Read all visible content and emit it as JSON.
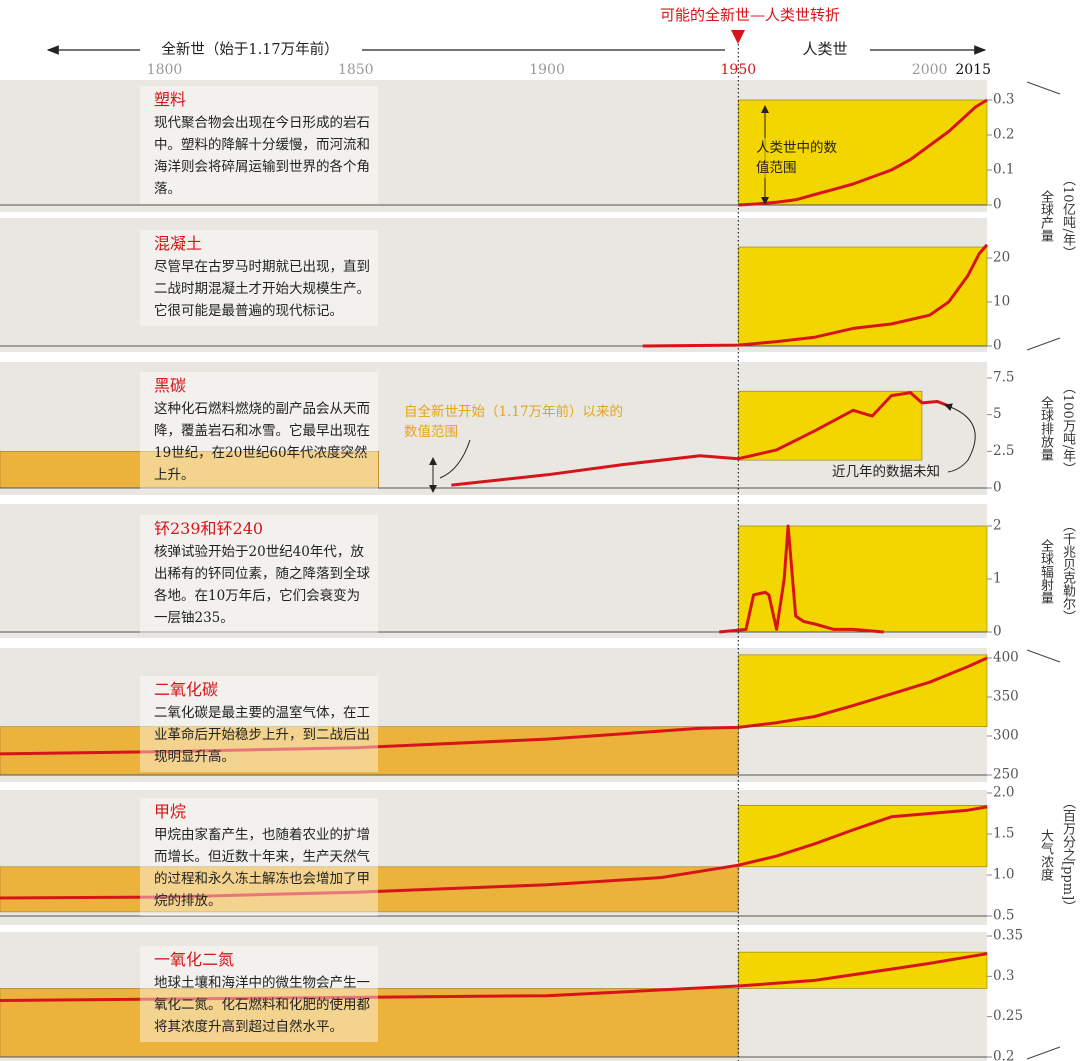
{
  "header": {
    "transition": "可能的全新世—人类世转折",
    "holocene": "全新世（始于1.17万年前）",
    "anthropocene": "人类世"
  },
  "timeline": {
    "xlim": [
      1757,
      2015
    ],
    "xticks": [
      1800,
      1850,
      1900,
      1950,
      2000,
      2015
    ],
    "transition_year": 1950
  },
  "axis_groups": [
    {
      "title": "全球产量",
      "unit": "（10亿吨/年）"
    },
    {
      "title": "全球排放量",
      "unit": "（100万吨/年）"
    },
    {
      "title": "全球辐射量",
      "unit": "（千兆贝克勒尔）"
    },
    {
      "title": "大气浓度",
      "unit": "（百万分之[ppm]）"
    }
  ],
  "annotations": {
    "anthropocene_range": "人类世中的数值范围",
    "holocene_range": "自全新世开始（1.17万年前）以来的数值范围",
    "recent_unknown": "近几年的数据未知"
  },
  "chart_data": [
    {
      "type": "line",
      "title": "塑料",
      "text": "现代聚合物会出现在今日形成的岩石中。塑料的降解十分缓慢，而河流和海洋则会将碎屑运输到世界的各个角落。",
      "color": "#d7141a",
      "x": [
        1950,
        1955,
        1960,
        1965,
        1970,
        1975,
        1980,
        1985,
        1990,
        1995,
        2000,
        2005,
        2010,
        2012,
        2015
      ],
      "values": [
        0,
        0.003,
        0.008,
        0.015,
        0.03,
        0.045,
        0.06,
        0.08,
        0.1,
        0.13,
        0.17,
        0.21,
        0.26,
        0.28,
        0.3
      ],
      "ylim": [
        0,
        0.3
      ],
      "yticks": [
        0,
        0.1,
        0.2,
        0.3
      ],
      "anthropocene_range": [
        0,
        0.3
      ]
    },
    {
      "type": "line",
      "title": "混凝土",
      "text": "尽管早在古罗马时期就已出现，直到二战时期混凝土才开始大规模生产。它很可能是最普遍的现代标记。",
      "color": "#d7141a",
      "x": [
        1925,
        1950,
        1960,
        1970,
        1980,
        1990,
        2000,
        2005,
        2010,
        2013,
        2015
      ],
      "values": [
        0,
        0.2,
        1,
        2,
        4,
        5,
        7,
        10,
        16,
        21,
        23
      ],
      "ylim": [
        0,
        25
      ],
      "yticks": [
        0,
        10,
        20
      ],
      "anthropocene_range": [
        0,
        22.5
      ]
    },
    {
      "type": "line",
      "title": "黑碳",
      "text": "这种化石燃料燃烧的副产品会从天而降，覆盖岩石和冰雪。它最早出现在19世纪，在20世纪60年代浓度突然上升。",
      "color": "#d7141a",
      "x": [
        1875,
        1900,
        1920,
        1940,
        1950,
        1960,
        1970,
        1980,
        1985,
        1990,
        1995,
        1998,
        2002,
        2005
      ],
      "values": [
        0.2,
        0.9,
        1.6,
        2.2,
        2.0,
        2.6,
        3.9,
        5.3,
        4.9,
        6.3,
        6.5,
        5.8,
        5.9,
        5.6
      ],
      "ylim": [
        0,
        7.5
      ],
      "yticks": [
        0,
        2.5,
        5,
        7.5
      ],
      "holocene_range": [
        0,
        2.5
      ],
      "holocene_x": [
        1757,
        1856
      ],
      "anthropocene_range": [
        1.9,
        6.6
      ],
      "anthropocene_x": [
        1950,
        1998
      ]
    },
    {
      "type": "line",
      "title": "钚239和钚240",
      "text": "核弹试验开始于20世纪40年代，放出稀有的钚同位素，随之降落到全球各地。在10万年后，它们会衰变为一层铀235。",
      "color": "#d7141a",
      "x": [
        1945,
        1952,
        1954,
        1957,
        1958,
        1960,
        1962,
        1963,
        1965,
        1967,
        1970,
        1975,
        1980,
        1988
      ],
      "values": [
        0,
        0.05,
        0.7,
        0.75,
        0.7,
        0.05,
        1.0,
        2.0,
        0.3,
        0.2,
        0.15,
        0.05,
        0.05,
        0
      ],
      "ylim": [
        0,
        2
      ],
      "yticks": [
        0,
        1,
        2
      ],
      "anthropocene_range": [
        0,
        2
      ]
    },
    {
      "type": "line",
      "title": "二氧化碳",
      "text": "二氧化碳是最主要的温室气体，在工业革命后开始稳步上升，到二战后出现明显升高。",
      "color": "#d7141a",
      "x": [
        1757,
        1800,
        1850,
        1900,
        1920,
        1940,
        1950,
        1960,
        1970,
        1980,
        1990,
        2000,
        2010,
        2015
      ],
      "values": [
        277,
        280,
        285,
        296,
        303,
        310,
        311,
        317,
        325,
        339,
        354,
        369,
        389,
        400
      ],
      "ylim": [
        250,
        400
      ],
      "yticks": [
        250,
        300,
        350,
        400
      ],
      "holocene_range": [
        250,
        312
      ],
      "anthropocene_range": [
        312,
        404
      ]
    },
    {
      "type": "line",
      "title": "甲烷",
      "text": "甲烷由家畜产生，也随着农业的扩增而增长。但近数十年来，生产天然气的过程和永久冻土解冻也会增加了甲烷的排放。",
      "color": "#d7141a",
      "x": [
        1757,
        1800,
        1850,
        1900,
        1930,
        1950,
        1960,
        1970,
        1980,
        1985,
        1990,
        2000,
        2010,
        2015
      ],
      "values": [
        0.72,
        0.73,
        0.79,
        0.88,
        0.97,
        1.12,
        1.23,
        1.38,
        1.55,
        1.63,
        1.71,
        1.75,
        1.79,
        1.83
      ],
      "ylim": [
        0.5,
        2.0
      ],
      "yticks": [
        0.5,
        {
          "value": 1.0,
          "label": "1.0"
        },
        1.5,
        {
          "value": 2.0,
          "label": "2.0"
        }
      ],
      "holocene_range": [
        0.55,
        1.1
      ],
      "anthropocene_range": [
        1.1,
        1.85
      ]
    },
    {
      "type": "line",
      "title": "一氧化二氮",
      "text": "地球土壤和海洋中的微生物会产生一氧化二氮。化石燃料和化肥的使用都将其浓度升高到超过自然水平。",
      "color": "#d7141a",
      "x": [
        1757,
        1900,
        1950,
        1970,
        1990,
        2000,
        2015
      ],
      "values": [
        0.27,
        0.276,
        0.288,
        0.295,
        0.309,
        0.316,
        0.328
      ],
      "ylim": [
        0.2,
        0.35
      ],
      "yticks": [
        0.2,
        0.25,
        0.3,
        0.35
      ],
      "holocene_range": [
        0.2,
        0.285
      ],
      "anthropocene_range": [
        0.285,
        0.33
      ]
    }
  ]
}
